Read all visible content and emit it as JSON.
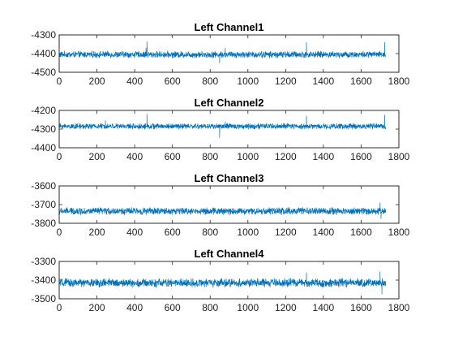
{
  "chart_data": [
    {
      "type": "line",
      "title": "Left Channel1",
      "xlim": [
        0,
        1800
      ],
      "ylim": [
        -4500,
        -4300
      ],
      "xticks": [
        "0",
        "200",
        "400",
        "600",
        "800",
        "1000",
        "1200",
        "1400",
        "1600",
        "1800"
      ],
      "yticks": [
        "-4300",
        "-4400",
        "-4500"
      ],
      "grid": false,
      "baseline": -4405,
      "noise": 14,
      "x_max": 1730,
      "features": [
        {
          "x": 465,
          "y": -4335
        },
        {
          "x": 460,
          "y": -4370
        },
        {
          "x": 850,
          "y": -4450
        },
        {
          "x": 880,
          "y": -4370
        },
        {
          "x": 1310,
          "y": -4340
        },
        {
          "x": 1725,
          "y": -4340
        }
      ],
      "color": "#0072BD"
    },
    {
      "type": "line",
      "title": "Left Channel2",
      "xlim": [
        0,
        1800
      ],
      "ylim": [
        -4400,
        -4200
      ],
      "xticks": [
        "0",
        "200",
        "400",
        "600",
        "800",
        "1000",
        "1200",
        "1400",
        "1600",
        "1800"
      ],
      "yticks": [
        "-4200",
        "-4300",
        "-4400"
      ],
      "grid": false,
      "baseline": -4285,
      "noise": 12,
      "x_max": 1730,
      "features": [
        {
          "x": 465,
          "y": -4220
        },
        {
          "x": 245,
          "y": -4255
        },
        {
          "x": 850,
          "y": -4345
        },
        {
          "x": 880,
          "y": -4260
        },
        {
          "x": 1310,
          "y": -4230
        },
        {
          "x": 1725,
          "y": -4225
        }
      ],
      "color": "#0072BD"
    },
    {
      "type": "line",
      "title": "Left Channel3",
      "xlim": [
        0,
        1800
      ],
      "ylim": [
        -3800,
        -3600
      ],
      "xticks": [
        "0",
        "200",
        "400",
        "600",
        "800",
        "1000",
        "1200",
        "1400",
        "1600",
        "1800"
      ],
      "yticks": [
        "-3600",
        "-3700",
        "-3800"
      ],
      "grid": false,
      "baseline": -3735,
      "noise": 15,
      "x_max": 1730,
      "features": [
        {
          "x": 1700,
          "y": -3690
        },
        {
          "x": 1705,
          "y": -3775
        }
      ],
      "color": "#0072BD"
    },
    {
      "type": "line",
      "title": "Left Channel4",
      "xlim": [
        0,
        1800
      ],
      "ylim": [
        -3500,
        -3300
      ],
      "xticks": [
        "0",
        "200",
        "400",
        "600",
        "800",
        "1000",
        "1200",
        "1400",
        "1600",
        "1800"
      ],
      "yticks": [
        "-3300",
        "-3400",
        "-3500"
      ],
      "grid": false,
      "baseline": -3415,
      "noise": 18,
      "x_max": 1730,
      "features": [
        {
          "x": 1310,
          "y": -3360
        },
        {
          "x": 1700,
          "y": -3355
        },
        {
          "x": 1710,
          "y": -3475
        }
      ],
      "color": "#0072BD"
    }
  ]
}
